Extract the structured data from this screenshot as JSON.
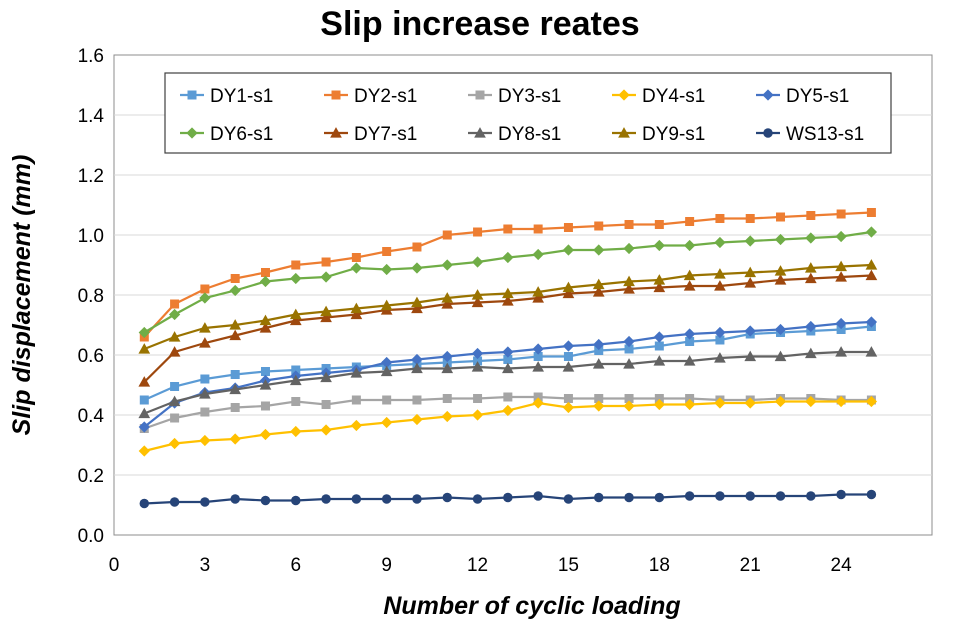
{
  "chart_data": {
    "type": "line",
    "title": "Slip increase reates",
    "xlabel": "Number of cyclic loading",
    "ylabel": "Slip displacement (mm)",
    "xlim": [
      0,
      27
    ],
    "ylim": [
      0,
      1.6
    ],
    "xticks": [
      0,
      3,
      6,
      9,
      12,
      15,
      18,
      21,
      24
    ],
    "xtick_labels": [
      "0",
      "3",
      "6",
      "9",
      "12",
      "15",
      "18",
      "21",
      "24"
    ],
    "yticks": [
      0,
      0.2,
      0.4,
      0.6,
      0.8,
      1.0,
      1.2,
      1.4,
      1.6
    ],
    "ytick_labels": [
      "0.0",
      "0.2",
      "0.4",
      "0.6",
      "0.8",
      "1.0",
      "1.2",
      "1.4",
      "1.6"
    ],
    "grid": "horizontal",
    "legend_position": "top",
    "x": [
      1,
      2,
      3,
      4,
      5,
      6,
      7,
      8,
      9,
      10,
      11,
      12,
      13,
      14,
      15,
      16,
      17,
      18,
      19,
      20,
      21,
      22,
      23,
      24,
      25
    ],
    "series": [
      {
        "name": "DY1-s1",
        "color": "#5B9BD5",
        "marker": "square",
        "values": [
          0.45,
          0.495,
          0.52,
          0.535,
          0.545,
          0.55,
          0.555,
          0.56,
          0.565,
          0.57,
          0.575,
          0.58,
          0.585,
          0.595,
          0.595,
          0.615,
          0.62,
          0.63,
          0.645,
          0.65,
          0.67,
          0.675,
          0.68,
          0.685,
          0.695
        ]
      },
      {
        "name": "DY2-s1",
        "color": "#ED7D31",
        "marker": "square",
        "values": [
          0.66,
          0.77,
          0.82,
          0.855,
          0.875,
          0.9,
          0.91,
          0.925,
          0.945,
          0.96,
          1.0,
          1.01,
          1.02,
          1.02,
          1.025,
          1.03,
          1.035,
          1.035,
          1.045,
          1.055,
          1.055,
          1.06,
          1.065,
          1.07,
          1.075
        ]
      },
      {
        "name": "DY3-s1",
        "color": "#A5A5A5",
        "marker": "square",
        "values": [
          0.355,
          0.39,
          0.41,
          0.425,
          0.43,
          0.445,
          0.435,
          0.45,
          0.45,
          0.45,
          0.455,
          0.455,
          0.46,
          0.46,
          0.455,
          0.455,
          0.455,
          0.455,
          0.455,
          0.45,
          0.45,
          0.455,
          0.455,
          0.45,
          0.45
        ]
      },
      {
        "name": "DY4-s1",
        "color": "#FFC000",
        "marker": "diamond",
        "values": [
          0.28,
          0.305,
          0.315,
          0.32,
          0.335,
          0.345,
          0.35,
          0.365,
          0.375,
          0.385,
          0.395,
          0.4,
          0.415,
          0.44,
          0.425,
          0.43,
          0.43,
          0.435,
          0.435,
          0.44,
          0.44,
          0.445,
          0.445,
          0.445,
          0.445
        ]
      },
      {
        "name": "DY5-s1",
        "color": "#4472C4",
        "marker": "diamond",
        "values": [
          0.36,
          0.44,
          0.475,
          0.49,
          0.515,
          0.53,
          0.54,
          0.55,
          0.575,
          0.585,
          0.595,
          0.605,
          0.61,
          0.62,
          0.63,
          0.635,
          0.645,
          0.66,
          0.67,
          0.675,
          0.68,
          0.685,
          0.695,
          0.705,
          0.71
        ]
      },
      {
        "name": "DY6-s1",
        "color": "#70AD47",
        "marker": "diamond",
        "values": [
          0.675,
          0.735,
          0.79,
          0.815,
          0.845,
          0.855,
          0.86,
          0.89,
          0.885,
          0.89,
          0.9,
          0.91,
          0.925,
          0.935,
          0.95,
          0.95,
          0.955,
          0.965,
          0.965,
          0.975,
          0.98,
          0.985,
          0.99,
          0.995,
          1.01
        ]
      },
      {
        "name": "DY7-s1",
        "color": "#9E480E",
        "marker": "triangle",
        "values": [
          0.51,
          0.61,
          0.64,
          0.665,
          0.69,
          0.715,
          0.725,
          0.735,
          0.75,
          0.755,
          0.77,
          0.775,
          0.78,
          0.79,
          0.805,
          0.81,
          0.82,
          0.825,
          0.83,
          0.83,
          0.84,
          0.85,
          0.855,
          0.86,
          0.865
        ]
      },
      {
        "name": "DY8-s1",
        "color": "#636363",
        "marker": "triangle",
        "values": [
          0.405,
          0.445,
          0.47,
          0.485,
          0.5,
          0.515,
          0.525,
          0.54,
          0.545,
          0.555,
          0.555,
          0.56,
          0.555,
          0.56,
          0.56,
          0.57,
          0.57,
          0.58,
          0.58,
          0.59,
          0.595,
          0.595,
          0.605,
          0.61,
          0.61
        ]
      },
      {
        "name": "DY9-s1",
        "color": "#997300",
        "marker": "triangle",
        "values": [
          0.62,
          0.66,
          0.69,
          0.7,
          0.715,
          0.735,
          0.745,
          0.755,
          0.765,
          0.775,
          0.79,
          0.8,
          0.805,
          0.81,
          0.825,
          0.835,
          0.845,
          0.85,
          0.865,
          0.87,
          0.875,
          0.88,
          0.89,
          0.895,
          0.9
        ]
      },
      {
        "name": "WS13-s1",
        "color": "#264478",
        "marker": "circle",
        "values": [
          0.105,
          0.11,
          0.11,
          0.12,
          0.115,
          0.115,
          0.12,
          0.12,
          0.12,
          0.12,
          0.125,
          0.12,
          0.125,
          0.13,
          0.12,
          0.125,
          0.125,
          0.125,
          0.13,
          0.13,
          0.13,
          0.13,
          0.13,
          0.135,
          0.135
        ]
      }
    ]
  }
}
